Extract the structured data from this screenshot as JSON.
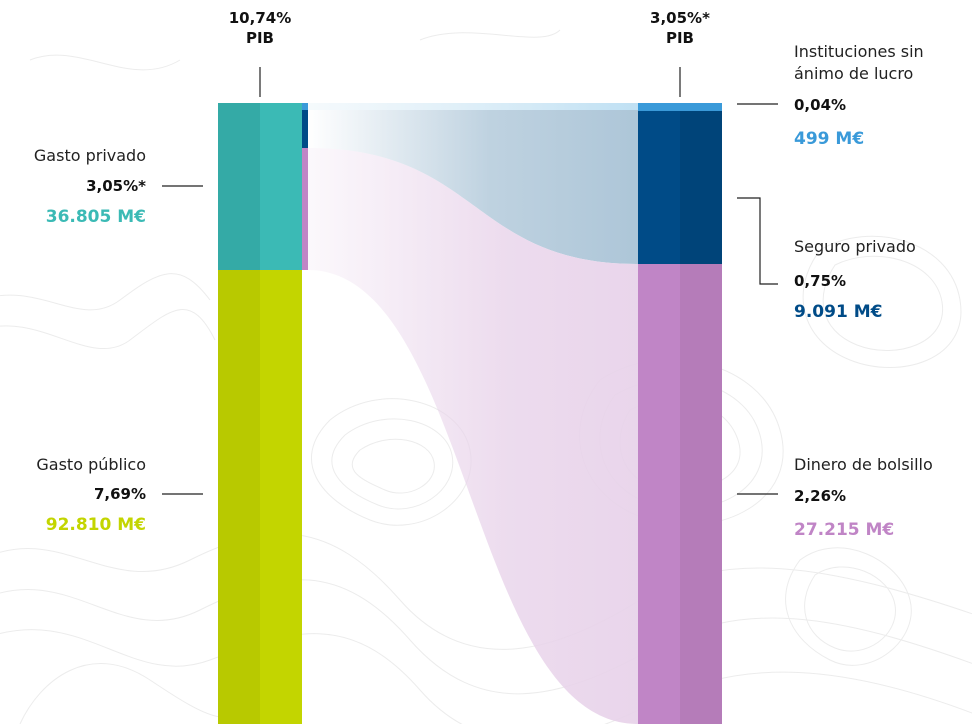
{
  "columns": {
    "left": {
      "pct": "10,74%",
      "unit": "PIB"
    },
    "right": {
      "pct": "3,05%*",
      "unit": "PIB"
    }
  },
  "left_items": [
    {
      "key": "gasto-privado",
      "name": "Gasto privado",
      "pct": "3,05%*",
      "amount": "36.805 M€",
      "color": "#3bbab5"
    },
    {
      "key": "gasto-publico",
      "name": "Gasto público",
      "pct": "7,69%",
      "amount": "92.810 M€",
      "color": "#c3d500"
    }
  ],
  "right_items": [
    {
      "key": "instituciones",
      "name_lines": [
        "Instituciones sin",
        "ánimo de lucro"
      ],
      "pct": "0,04%",
      "amount": "499 M€",
      "color": "#3a9ad9"
    },
    {
      "key": "seguro-privado",
      "name": "Seguro privado",
      "pct": "0,75%",
      "amount": "9.091 M€",
      "color": "#004b87"
    },
    {
      "key": "dinero-bolsillo",
      "name": "Dinero de bolsillo",
      "pct": "2,26%",
      "amount": "27.215 M€",
      "color": "#c085c6"
    }
  ],
  "colors": {
    "flow_blue": "#a9c3d6",
    "flow_pink": "#e8d3ea",
    "line": "#222222"
  }
}
